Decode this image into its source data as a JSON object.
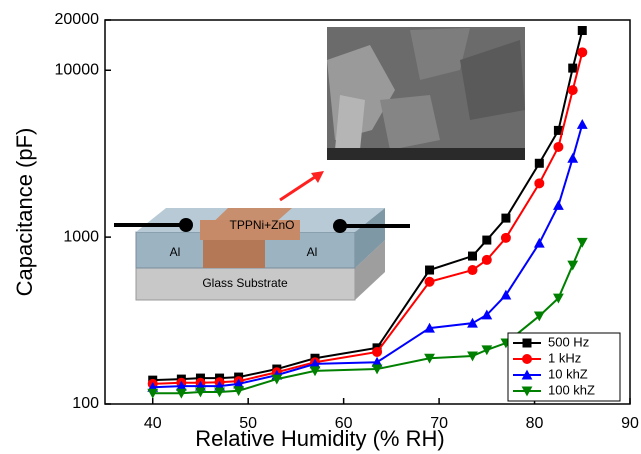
{
  "chart_data": {
    "type": "line",
    "x_label": "Relative Humidity (% RH)",
    "y_label": "Capacitance (pF)",
    "log_y": true,
    "xlim": [
      35,
      90
    ],
    "xticks": [
      40,
      50,
      60,
      70,
      80,
      90
    ],
    "ylim": [
      100,
      20000
    ],
    "yticks": [
      100,
      1000,
      10000,
      20000
    ],
    "legend": "lower right",
    "annotations": [
      "TPPNi+ZnO",
      "Al",
      "Al",
      "Glass Substrate"
    ],
    "x": [
      40,
      43,
      45,
      47,
      49,
      53,
      57,
      63.5,
      69,
      73.5,
      75,
      77,
      80.5,
      82.5,
      84,
      85
    ],
    "series": [
      {
        "name": "500 Hz",
        "color": "#000000",
        "marker": "square",
        "values": [
          139,
          141,
          143,
          143,
          145,
          162,
          188,
          217,
          635,
          770,
          960,
          1300,
          2770,
          4360,
          10300,
          17300
        ]
      },
      {
        "name": "1 kHz",
        "color": "#ff0000",
        "marker": "circle",
        "values": [
          132,
          134,
          134,
          135,
          137,
          155,
          178,
          205,
          540,
          635,
          730,
          990,
          2100,
          3470,
          7600,
          12800
        ]
      },
      {
        "name": "10 khZ",
        "color": "#0000ff",
        "marker": "triangle-up",
        "values": [
          126,
          128,
          128,
          128,
          132,
          149,
          174,
          178,
          285,
          305,
          342,
          450,
          920,
          1550,
          2970,
          4740
        ]
      },
      {
        "name": "100 khZ",
        "color": "#008000",
        "marker": "triangle-down",
        "values": [
          116,
          116,
          118,
          118,
          120,
          141,
          158,
          162,
          188,
          194,
          211,
          232,
          337,
          431,
          680,
          930
        ]
      }
    ]
  }
}
